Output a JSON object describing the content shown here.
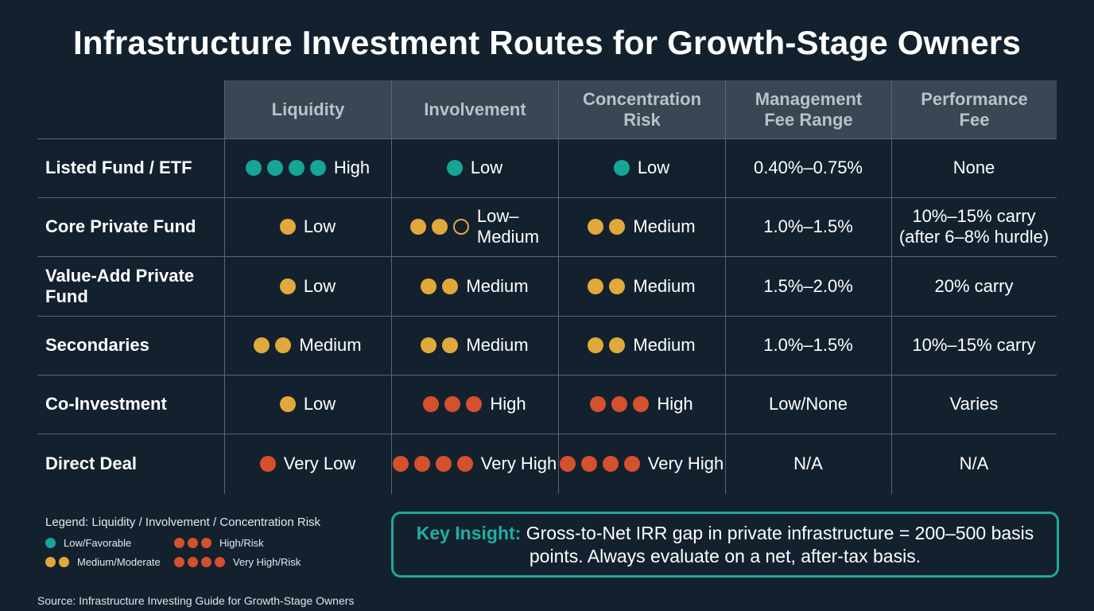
{
  "title": "Infrastructure Investment Routes for Growth-Stage Owners",
  "colors": {
    "background": "#13212f",
    "header_fill": "#3a4653",
    "teal": "#16a596",
    "amber": "#e1a93b",
    "red": "#d5502d",
    "accent_border": "#1fa89c"
  },
  "columns": [
    "Liquidity",
    "Involvement",
    "Concentration\nRisk",
    "Management\nFee Range",
    "Performance\nFee"
  ],
  "rows": [
    {
      "label": "Listed Fund / ETF",
      "cells": [
        {
          "dots": [
            "teal",
            "teal",
            "teal",
            "teal"
          ],
          "text": "High"
        },
        {
          "dots": [
            "teal"
          ],
          "text": "Low"
        },
        {
          "dots": [
            "teal"
          ],
          "text": "Low"
        },
        {
          "text": "0.40%–0.75%"
        },
        {
          "text": "None"
        }
      ]
    },
    {
      "label": "Core Private Fund",
      "cells": [
        {
          "dots": [
            "amber"
          ],
          "text": "Low"
        },
        {
          "dots": [
            "amber",
            "amber",
            "amber-outline"
          ],
          "text": "Low–\nMedium"
        },
        {
          "dots": [
            "amber",
            "amber"
          ],
          "text": "Medium"
        },
        {
          "text": "1.0%–1.5%"
        },
        {
          "text": "10%–15% carry\n(after 6–8% hurdle)"
        }
      ]
    },
    {
      "label": "Value-Add Private\nFund",
      "cells": [
        {
          "dots": [
            "amber"
          ],
          "text": "Low"
        },
        {
          "dots": [
            "amber",
            "amber"
          ],
          "text": "Medium"
        },
        {
          "dots": [
            "amber",
            "amber"
          ],
          "text": "Medium"
        },
        {
          "text": "1.5%–2.0%"
        },
        {
          "text": "20% carry"
        }
      ]
    },
    {
      "label": "Secondaries",
      "cells": [
        {
          "dots": [
            "amber",
            "amber"
          ],
          "text": "Medium"
        },
        {
          "dots": [
            "amber",
            "amber"
          ],
          "text": "Medium"
        },
        {
          "dots": [
            "amber",
            "amber"
          ],
          "text": "Medium"
        },
        {
          "text": "1.0%–1.5%"
        },
        {
          "text": "10%–15% carry"
        }
      ]
    },
    {
      "label": "Co-Investment",
      "cells": [
        {
          "dots": [
            "amber"
          ],
          "text": "Low"
        },
        {
          "dots": [
            "red",
            "red",
            "red"
          ],
          "text": "High"
        },
        {
          "dots": [
            "red",
            "red",
            "red"
          ],
          "text": "High"
        },
        {
          "text": "Low/None"
        },
        {
          "text": "Varies"
        }
      ]
    },
    {
      "label": "Direct Deal",
      "cells": [
        {
          "dots": [
            "red"
          ],
          "text": "Very Low"
        },
        {
          "dots": [
            "red",
            "red",
            "red",
            "red"
          ],
          "text": "Very High"
        },
        {
          "dots": [
            "red",
            "red",
            "red",
            "red"
          ],
          "text": "Very High"
        },
        {
          "text": "N/A"
        },
        {
          "text": "N/A"
        }
      ]
    }
  ],
  "legend": {
    "title": "Legend: Liquidity / Involvement / Concentration Risk",
    "items": [
      {
        "dots": [
          "teal"
        ],
        "text": "Low/Favorable"
      },
      {
        "dots": [
          "red",
          "red",
          "red"
        ],
        "text": "High/Risk"
      },
      {
        "dots": [
          "amber",
          "amber"
        ],
        "text": "Medium/Moderate"
      },
      {
        "dots": [
          "red",
          "red",
          "red",
          "red"
        ],
        "text": "Very High/Risk"
      }
    ]
  },
  "insight": {
    "label": "Key Insight:",
    "text": "Gross-to-Net IRR gap in private infrastructure = 200–500 basis points. Always evaluate on a net, after-tax basis."
  },
  "source": "Source: Infrastructure Investing Guide for Growth-Stage Owners"
}
